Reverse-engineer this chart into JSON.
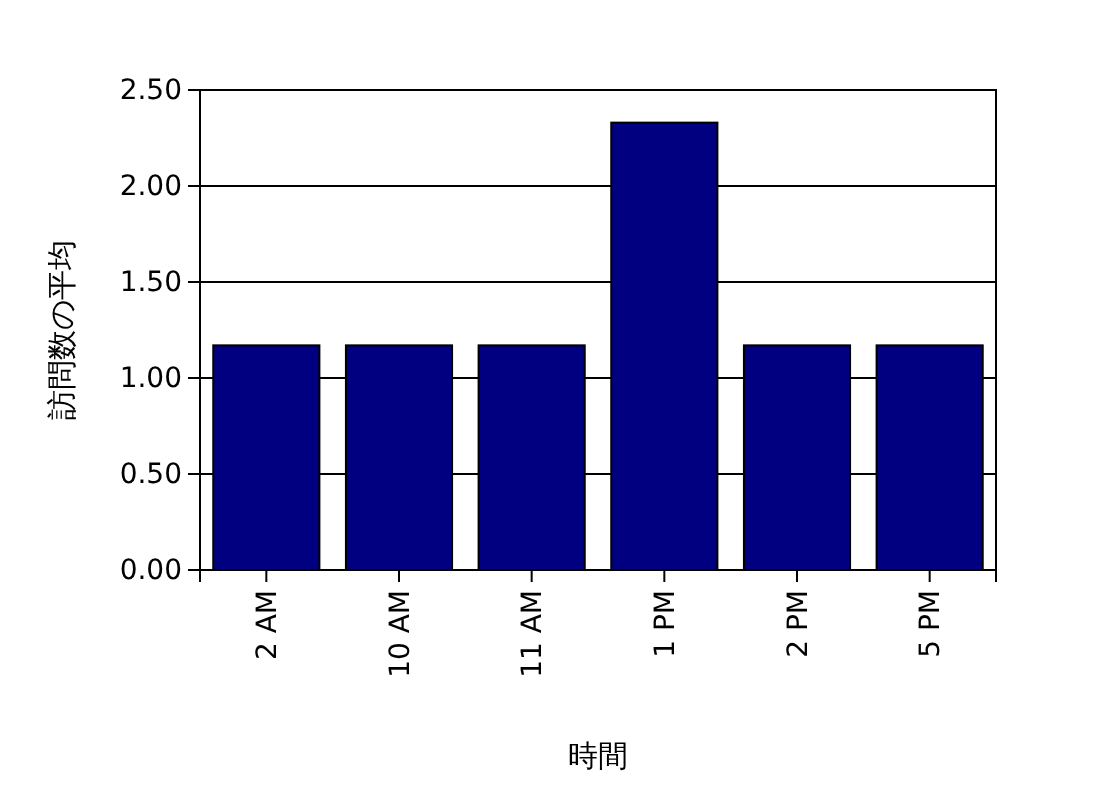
{
  "chart_data": {
    "type": "bar",
    "xlabel": "時間",
    "ylabel": "訪問数の平均",
    "categories": [
      "2 AM",
      "10 AM",
      "11 AM",
      "1 PM",
      "2 PM",
      "5 PM"
    ],
    "values": [
      1.17,
      1.17,
      1.17,
      2.33,
      1.17,
      1.17
    ],
    "color": "#000080",
    "ylim": [
      0,
      2.5
    ],
    "yticks": [
      {
        "value": 0,
        "label": "0.00"
      },
      {
        "value": 0.5,
        "label": "0.50"
      },
      {
        "value": 1,
        "label": "1.00"
      },
      {
        "value": 1.5,
        "label": "1.50"
      },
      {
        "value": 2,
        "label": "2.00"
      },
      {
        "value": 2.5,
        "label": "2.50"
      }
    ],
    "grid": "y"
  }
}
